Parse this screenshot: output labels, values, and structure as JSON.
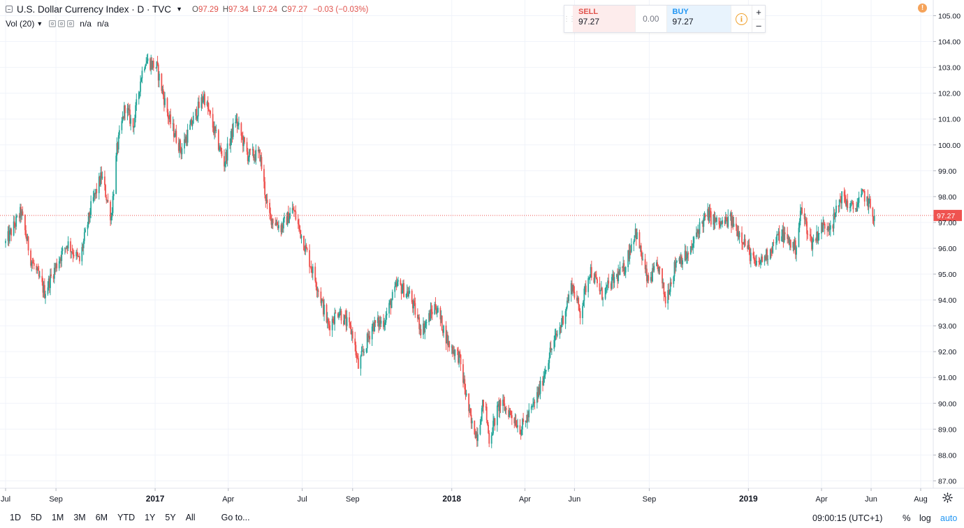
{
  "legend": {
    "symbol": "U.S. Dollar Currency Index · D · TVC",
    "ohlc": [
      {
        "label": "O",
        "value": "97.29"
      },
      {
        "label": "H",
        "value": "97.34"
      },
      {
        "label": "L",
        "value": "97.24"
      },
      {
        "label": "C",
        "value": "97.27"
      },
      {
        "label": "",
        "value": "−0.03 (−0.03%)"
      }
    ],
    "volume_title": "Vol (20)",
    "volume_values": [
      "n/a",
      "n/a"
    ]
  },
  "trade_panel": {
    "sell_label": "SELL",
    "sell_value": "97.27",
    "spread": "0.00",
    "buy_label": "BUY",
    "buy_value": "97.27",
    "info_glyph": "i",
    "plus": "+",
    "minus": "–"
  },
  "alert_glyph": "!",
  "bottom_bar": {
    "ranges": [
      "1D",
      "5D",
      "1M",
      "3M",
      "6M",
      "YTD",
      "1Y",
      "5Y",
      "All"
    ],
    "goto": "Go to...",
    "clock": "09:00:15 (UTC+1)",
    "percent": "%",
    "log": "log",
    "auto": "auto"
  },
  "colors": {
    "up": "#26a69a",
    "down": "#ef5350",
    "last_price": "#ef5350",
    "grid": "#f0f3fa",
    "auto": "#2196f3"
  },
  "chart_data": {
    "type": "candlestick",
    "title": "U.S. Dollar Currency Index",
    "ylim": [
      86.8,
      105.5
    ],
    "y_ticks": [
      "105.00",
      "104.00",
      "103.00",
      "102.00",
      "101.00",
      "100.00",
      "99.00",
      "98.00",
      "97.00",
      "96.00",
      "95.00",
      "94.00",
      "93.00",
      "92.00",
      "91.00",
      "90.00",
      "89.00",
      "88.00",
      "87.00"
    ],
    "x_ticks": [
      {
        "label": "Jul",
        "date": "2016-07-01",
        "bold": false
      },
      {
        "label": "Sep",
        "date": "2016-09-01",
        "bold": false
      },
      {
        "label": "2017",
        "date": "2017-01-01",
        "bold": true
      },
      {
        "label": "Apr",
        "date": "2017-04-01",
        "bold": false
      },
      {
        "label": "Jul",
        "date": "2017-07-01",
        "bold": false
      },
      {
        "label": "Sep",
        "date": "2017-09-01",
        "bold": false
      },
      {
        "label": "2018",
        "date": "2018-01-01",
        "bold": true
      },
      {
        "label": "Apr",
        "date": "2018-04-01",
        "bold": false
      },
      {
        "label": "Jun",
        "date": "2018-06-01",
        "bold": false
      },
      {
        "label": "Sep",
        "date": "2018-09-01",
        "bold": false
      },
      {
        "label": "2019",
        "date": "2019-01-01",
        "bold": true
      },
      {
        "label": "Apr",
        "date": "2019-04-01",
        "bold": false
      },
      {
        "label": "Jun",
        "date": "2019-06-01",
        "bold": false
      },
      {
        "label": "Aug",
        "date": "2019-08-01",
        "bold": false
      }
    ],
    "last_price": 97.27,
    "last_price_label": "97.27",
    "x_start": "2016-07-01",
    "x_end": "2019-08-01",
    "series": [
      {
        "date": "2016-07-01",
        "close": 96.2
      },
      {
        "date": "2016-07-20",
        "close": 97.4
      },
      {
        "date": "2016-08-01",
        "close": 95.6
      },
      {
        "date": "2016-08-18",
        "close": 94.3
      },
      {
        "date": "2016-09-05",
        "close": 95.6
      },
      {
        "date": "2016-09-15",
        "close": 96.2
      },
      {
        "date": "2016-09-30",
        "close": 95.5
      },
      {
        "date": "2016-10-15",
        "close": 97.7
      },
      {
        "date": "2016-10-27",
        "close": 98.8
      },
      {
        "date": "2016-11-08",
        "close": 97.2
      },
      {
        "date": "2016-11-15",
        "close": 99.8
      },
      {
        "date": "2016-11-25",
        "close": 101.5
      },
      {
        "date": "2016-12-05",
        "close": 100.7
      },
      {
        "date": "2016-12-15",
        "close": 102.7
      },
      {
        "date": "2016-12-20",
        "close": 103.3
      },
      {
        "date": "2017-01-03",
        "close": 103.0
      },
      {
        "date": "2017-01-18",
        "close": 101.0
      },
      {
        "date": "2017-02-02",
        "close": 99.8
      },
      {
        "date": "2017-02-20",
        "close": 101.2
      },
      {
        "date": "2017-03-02",
        "close": 101.9
      },
      {
        "date": "2017-03-15",
        "close": 100.5
      },
      {
        "date": "2017-03-27",
        "close": 99.3
      },
      {
        "date": "2017-04-10",
        "close": 101.0
      },
      {
        "date": "2017-04-25",
        "close": 99.6
      },
      {
        "date": "2017-05-10",
        "close": 99.6
      },
      {
        "date": "2017-05-20",
        "close": 97.3
      },
      {
        "date": "2017-06-05",
        "close": 96.8
      },
      {
        "date": "2017-06-20",
        "close": 97.5
      },
      {
        "date": "2017-07-05",
        "close": 96.0
      },
      {
        "date": "2017-07-20",
        "close": 94.5
      },
      {
        "date": "2017-08-02",
        "close": 93.0
      },
      {
        "date": "2017-08-15",
        "close": 93.6
      },
      {
        "date": "2017-09-01",
        "close": 92.7
      },
      {
        "date": "2017-09-08",
        "close": 91.4
      },
      {
        "date": "2017-09-25",
        "close": 93.0
      },
      {
        "date": "2017-10-10",
        "close": 93.2
      },
      {
        "date": "2017-10-26",
        "close": 94.6
      },
      {
        "date": "2017-11-10",
        "close": 94.2
      },
      {
        "date": "2017-11-25",
        "close": 92.8
      },
      {
        "date": "2017-12-12",
        "close": 93.8
      },
      {
        "date": "2017-12-28",
        "close": 92.3
      },
      {
        "date": "2018-01-10",
        "close": 91.8
      },
      {
        "date": "2018-01-25",
        "close": 89.2
      },
      {
        "date": "2018-02-01",
        "close": 88.8
      },
      {
        "date": "2018-02-10",
        "close": 90.2
      },
      {
        "date": "2018-02-16",
        "close": 88.6
      },
      {
        "date": "2018-03-01",
        "close": 90.0
      },
      {
        "date": "2018-03-15",
        "close": 89.6
      },
      {
        "date": "2018-03-27",
        "close": 89.0
      },
      {
        "date": "2018-04-10",
        "close": 89.8
      },
      {
        "date": "2018-04-20",
        "close": 90.6
      },
      {
        "date": "2018-05-01",
        "close": 91.9
      },
      {
        "date": "2018-05-15",
        "close": 93.0
      },
      {
        "date": "2018-05-29",
        "close": 94.6
      },
      {
        "date": "2018-06-08",
        "close": 93.5
      },
      {
        "date": "2018-06-20",
        "close": 95.2
      },
      {
        "date": "2018-07-05",
        "close": 94.2
      },
      {
        "date": "2018-07-20",
        "close": 94.8
      },
      {
        "date": "2018-08-01",
        "close": 95.2
      },
      {
        "date": "2018-08-15",
        "close": 96.7
      },
      {
        "date": "2018-08-30",
        "close": 94.7
      },
      {
        "date": "2018-09-12",
        "close": 95.3
      },
      {
        "date": "2018-09-21",
        "close": 94.0
      },
      {
        "date": "2018-10-05",
        "close": 95.6
      },
      {
        "date": "2018-10-20",
        "close": 95.7
      },
      {
        "date": "2018-11-01",
        "close": 96.8
      },
      {
        "date": "2018-11-12",
        "close": 97.3
      },
      {
        "date": "2018-11-26",
        "close": 96.9
      },
      {
        "date": "2018-12-10",
        "close": 97.1
      },
      {
        "date": "2018-12-25",
        "close": 96.4
      },
      {
        "date": "2019-01-10",
        "close": 95.3
      },
      {
        "date": "2019-01-25",
        "close": 95.8
      },
      {
        "date": "2019-02-10",
        "close": 96.6
      },
      {
        "date": "2019-02-28",
        "close": 96.0
      },
      {
        "date": "2019-03-07",
        "close": 97.5
      },
      {
        "date": "2019-03-20",
        "close": 96.2
      },
      {
        "date": "2019-04-01",
        "close": 96.8
      },
      {
        "date": "2019-04-15",
        "close": 97.0
      },
      {
        "date": "2019-04-25",
        "close": 98.0
      },
      {
        "date": "2019-05-10",
        "close": 97.5
      },
      {
        "date": "2019-05-23",
        "close": 98.1
      },
      {
        "date": "2019-05-31",
        "close": 97.6
      },
      {
        "date": "2019-06-03",
        "close": 97.3
      },
      {
        "date": "2019-06-05",
        "close": 97.27
      }
    ]
  }
}
